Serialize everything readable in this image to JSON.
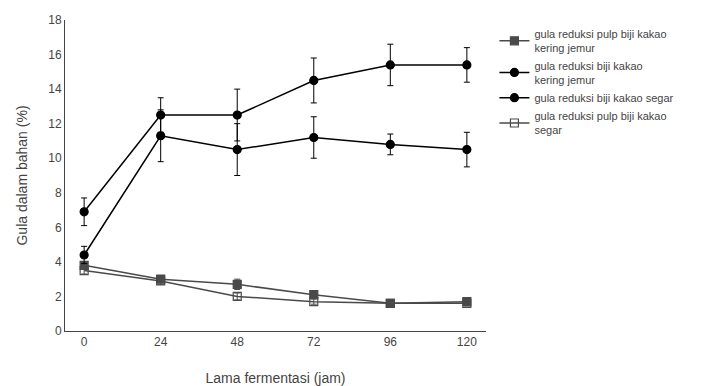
{
  "chart_data": {
    "type": "line",
    "x": [
      0,
      24,
      48,
      72,
      96,
      120
    ],
    "series": [
      {
        "name": "gula reduksi pulp biji kakao\nkering jemur",
        "values": [
          3.8,
          3.0,
          2.7,
          2.1,
          1.6,
          1.7
        ],
        "yerr": [
          0.2,
          0.2,
          0.3,
          0.2,
          0.15,
          0.15
        ],
        "color": "#4a4a4a",
        "marker": "square"
      },
      {
        "name": "gula reduksi biji kakao\nkering jemur",
        "values": [
          4.4,
          11.3,
          10.5,
          11.2,
          10.8,
          10.5
        ],
        "yerr": [
          0.5,
          1.5,
          1.5,
          1.2,
          0.6,
          1.0
        ],
        "color": "#000000",
        "marker": "circle"
      },
      {
        "name": "gula reduksi biji kakao segar",
        "values": [
          6.9,
          12.5,
          12.5,
          14.5,
          15.4,
          15.4
        ],
        "yerr": [
          0.8,
          1.0,
          1.5,
          1.3,
          1.2,
          1.0
        ],
        "color": "#000000",
        "marker": "circle"
      },
      {
        "name": "gula reduksi pulp biji kakao\nsegar",
        "values": [
          3.5,
          2.9,
          2.0,
          1.7,
          1.6,
          1.6
        ],
        "yerr": [
          0.2,
          0.2,
          0.2,
          0.15,
          0.15,
          0.15
        ],
        "color": "#4a4a4a",
        "marker": "square-open"
      }
    ],
    "xlabel": "Lama fermentasi (jam)",
    "ylabel": "Gula dalam bahan (%)",
    "xlim": [
      -6,
      126
    ],
    "xticks": [
      0,
      24,
      48,
      72,
      96,
      120
    ],
    "ylim": [
      0,
      18
    ],
    "yticks": [
      0,
      2,
      4,
      6,
      8,
      10,
      12,
      14,
      16,
      18
    ],
    "grid": false,
    "legend": "right"
  }
}
